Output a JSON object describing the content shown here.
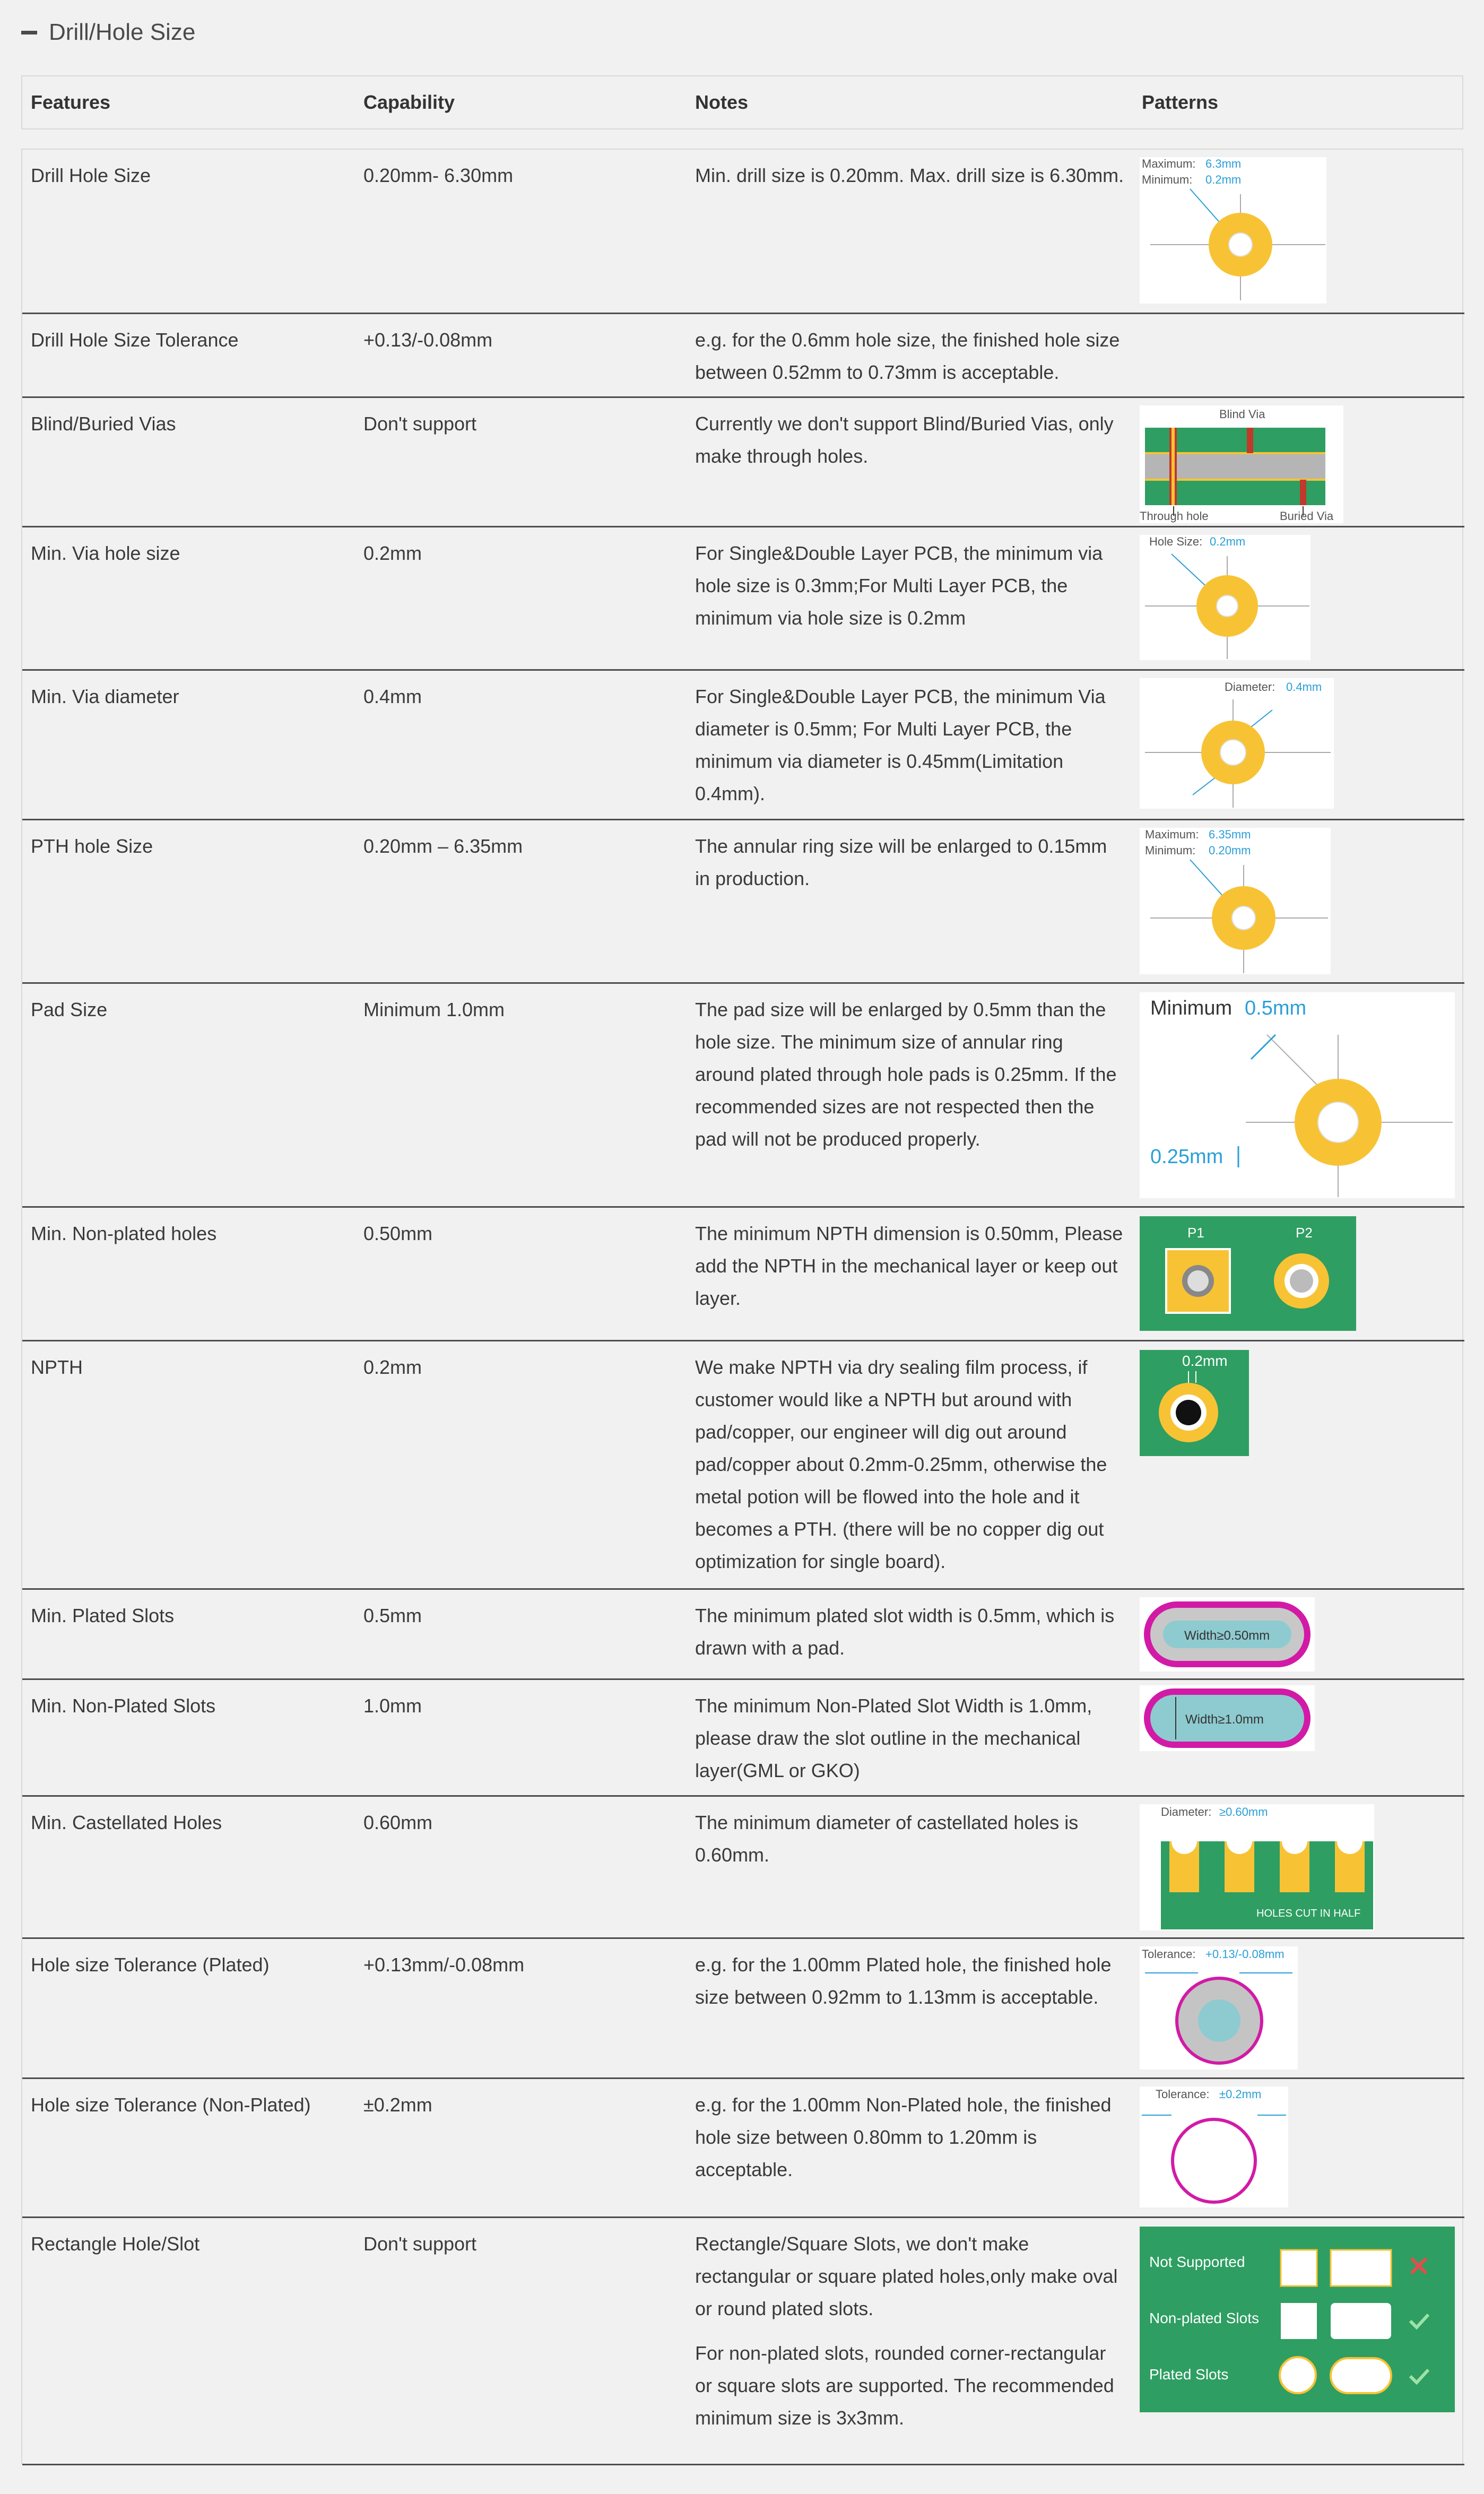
{
  "section": {
    "title": "Drill/Hole Size"
  },
  "columns": {
    "features": "Features",
    "capability": "Capability",
    "notes": "Notes",
    "patterns": "Patterns"
  },
  "rows": [
    {
      "feature": "Drill Hole Size",
      "capability": "0.20mm- 6.30mm",
      "notes": [
        "Min. drill size is 0.20mm. Max. drill size is 6.30mm."
      ],
      "pattern": {
        "label1": "Maximum:",
        "value1": "6.3mm",
        "label2": "Minimum:",
        "value2": "0.2mm"
      }
    },
    {
      "feature": "Drill Hole Size Tolerance",
      "capability": "+0.13/-0.08mm",
      "notes": [
        "e.g. for the 0.6mm hole size, the finished hole size between 0.52mm to 0.73mm is acceptable."
      ]
    },
    {
      "feature": "Blind/Buried Vias",
      "capability": "Don't support",
      "notes": [
        "Currently we don't support Blind/Buried Vias, only make through holes."
      ],
      "pattern": {
        "blind": "Blind Via",
        "through": "Through hole",
        "buried": "Buried Via"
      }
    },
    {
      "feature": "Min. Via hole size",
      "capability": "0.2mm",
      "notes": [
        "For Single&Double Layer PCB, the minimum via hole size is 0.3mm;For Multi Layer PCB, the minimum via hole size is 0.2mm"
      ],
      "pattern": {
        "label1": "Hole Size:",
        "value1": "0.2mm"
      }
    },
    {
      "feature": "Min. Via diameter",
      "capability": "0.4mm",
      "notes": [
        "For Single&Double Layer PCB, the minimum Via diameter is 0.5mm; For Multi Layer PCB, the minimum via diameter is 0.45mm(Limitation 0.4mm)."
      ],
      "pattern": {
        "label1": "Diameter:",
        "value1": "0.4mm"
      }
    },
    {
      "feature": "PTH hole Size",
      "capability": "0.20mm – 6.35mm",
      "notes": [
        "The annular ring size will be enlarged to 0.15mm in production."
      ],
      "pattern": {
        "label1": "Maximum:",
        "value1": "6.35mm",
        "label2": "Minimum:",
        "value2": "0.20mm"
      }
    },
    {
      "feature": "Pad Size",
      "capability": "Minimum 1.0mm",
      "notes": [
        "The pad size will be enlarged by 0.5mm than the hole size. The minimum size of annular ring around plated through hole pads is 0.25mm. If the recommended sizes are not respected then the pad will not be produced properly."
      ],
      "pattern": {
        "label1": "Minimum",
        "value1": "0.5mm",
        "value2": "0.25mm"
      }
    },
    {
      "feature": "Min. Non-plated holes",
      "capability": "0.50mm",
      "notes": [
        "The minimum NPTH dimension is 0.50mm, Please add the NPTH in the mechanical layer or keep out layer."
      ],
      "pattern": {
        "p1": "P1",
        "p2": "P2"
      }
    },
    {
      "feature": "NPTH",
      "capability": "0.2mm",
      "notes": [
        "We make NPTH via dry sealing film process, if customer would like a NPTH but around with pad/copper, our engineer will dig out around pad/copper about 0.2mm-0.25mm, otherwise the metal potion will be flowed into the hole and it becomes a PTH. (there will be no copper dig out optimization for single board)."
      ],
      "pattern": {
        "value1": "0.2mm"
      }
    },
    {
      "feature": "Min. Plated Slots",
      "capability": "0.5mm",
      "notes": [
        "The minimum plated slot width is 0.5mm, which is drawn with a pad."
      ],
      "pattern": {
        "value1": "Width≥0.50mm"
      }
    },
    {
      "feature": "Min. Non-Plated Slots",
      "capability": "1.0mm",
      "notes": [
        "The minimum Non-Plated Slot Width is 1.0mm, please draw the slot outline in the mechanical layer(GML or GKO)"
      ],
      "pattern": {
        "value1": "Width≥1.0mm"
      }
    },
    {
      "feature": "Min. Castellated Holes",
      "capability": "0.60mm",
      "notes": [
        "The minimum diameter of castellated holes is 0.60mm."
      ],
      "pattern": {
        "label1": "Diameter:",
        "value1": "≥0.60mm",
        "caption": "HOLES CUT IN HALF"
      }
    },
    {
      "feature": "Hole size Tolerance (Plated)",
      "capability": "+0.13mm/-0.08mm",
      "notes": [
        "e.g. for the 1.00mm Plated hole, the finished hole size between 0.92mm to 1.13mm is acceptable."
      ],
      "pattern": {
        "label1": "Tolerance:",
        "value1": "+0.13/-0.08mm"
      }
    },
    {
      "feature": "Hole size Tolerance (Non-Plated)",
      "capability": "±0.2mm",
      "notes": [
        "e.g. for the 1.00mm Non-Plated hole, the finished hole size between 0.80mm to 1.20mm is acceptable."
      ],
      "pattern": {
        "label1": "Tolerance:",
        "value1": "±0.2mm"
      }
    },
    {
      "feature": "Rectangle Hole/Slot",
      "capability": "Don't support",
      "notes": [
        "Rectangle/Square Slots, we don't make rectangular or square plated holes,only make oval or round plated slots.",
        "For non-plated slots, rounded corner-rectangular or square slots are supported. The recommended minimum size is 3x3mm."
      ],
      "pattern": {
        "r1": "Not Supported",
        "r2": "Non-plated Slots",
        "r3": "Plated Slots"
      }
    }
  ],
  "colors": {
    "accent": "#2a9fd8",
    "pad": "#f7c335",
    "board": "#2e9e62",
    "slot": "#d21aa6"
  }
}
